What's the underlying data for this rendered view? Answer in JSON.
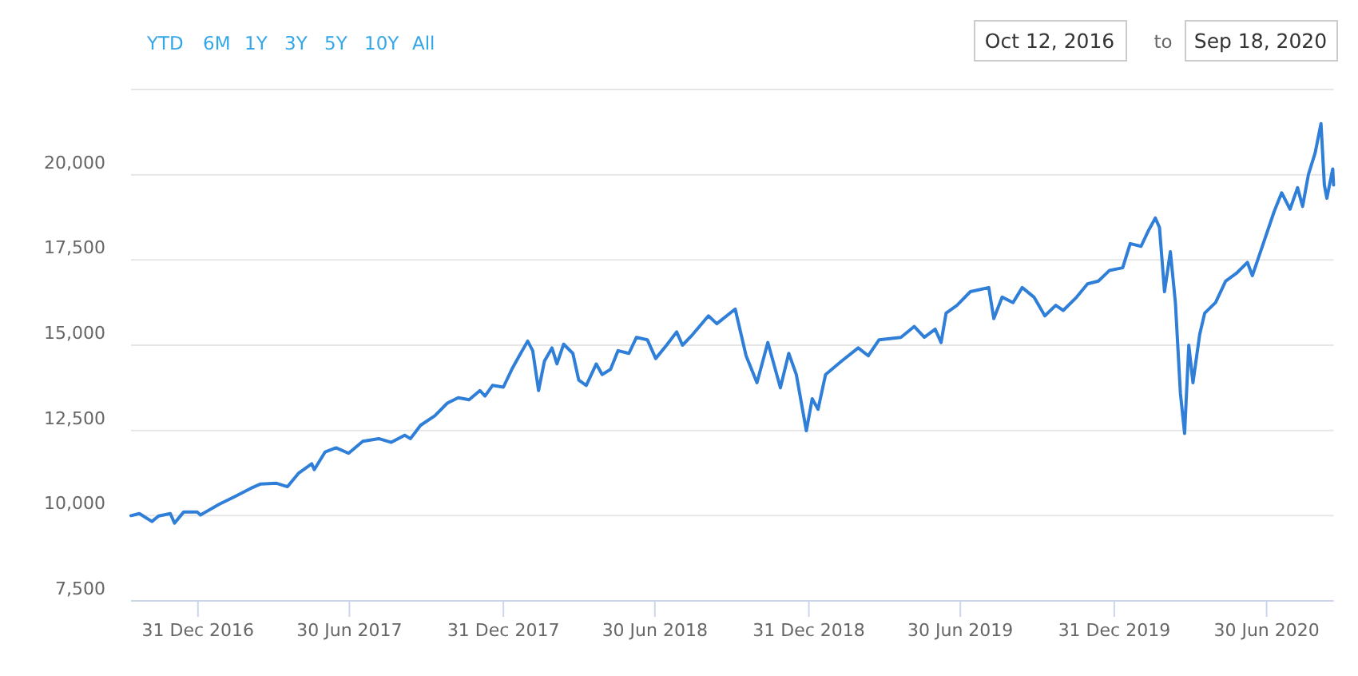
{
  "chart_data": {
    "type": "line",
    "annotations": [
      "YTD",
      "6M",
      "1Y",
      "3Y",
      "5Y",
      "10Y",
      "All",
      "Oct 12, 2016",
      "to",
      "Sep 18, 2020"
    ],
    "xlim": [
      "2016-10-12",
      "2020-09-18"
    ],
    "xticks": [
      {
        "value": "2016-12-31",
        "label": "31 Dec 2016"
      },
      {
        "value": "2017-06-30",
        "label": "30 Jun 2017"
      },
      {
        "value": "2017-12-31",
        "label": "31 Dec 2017"
      },
      {
        "value": "2018-06-30",
        "label": "30 Jun 2018"
      },
      {
        "value": "2018-12-31",
        "label": "31 Dec 2018"
      },
      {
        "value": "2019-06-30",
        "label": "30 Jun 2019"
      },
      {
        "value": "2019-12-31",
        "label": "31 Dec 2019"
      },
      {
        "value": "2020-06-30",
        "label": "30 Jun 2020"
      }
    ],
    "ylim": [
      7500,
      22500
    ],
    "yticks": [
      {
        "value": 7500,
        "label": "7,500"
      },
      {
        "value": 10000,
        "label": "10,000"
      },
      {
        "value": 12500,
        "label": "12,500"
      },
      {
        "value": 15000,
        "label": "15,000"
      },
      {
        "value": 17500,
        "label": "17,500"
      },
      {
        "value": 20000,
        "label": "20,000"
      },
      {
        "value": 22500,
        "label": null
      }
    ],
    "grid": "y",
    "series": [
      {
        "color": "#2f7ed8",
        "x": [
          "2016-10-12",
          "2016-10-22",
          "2016-11-06",
          "2016-11-14",
          "2016-11-28",
          "2016-12-03",
          "2016-12-14",
          "2016-12-30",
          "2017-01-03",
          "2017-01-25",
          "2017-02-13",
          "2017-03-04",
          "2017-03-16",
          "2017-04-04",
          "2017-04-17",
          "2017-04-30",
          "2017-05-16",
          "2017-05-19",
          "2017-06-01",
          "2017-06-14",
          "2017-06-29",
          "2017-07-16",
          "2017-08-04",
          "2017-08-19",
          "2017-09-04",
          "2017-09-11",
          "2017-09-23",
          "2017-10-10",
          "2017-10-25",
          "2017-11-07",
          "2017-11-20",
          "2017-12-03",
          "2017-12-09",
          "2017-12-18",
          "2017-12-31",
          "2018-01-10",
          "2018-01-19",
          "2018-01-29",
          "2018-02-04",
          "2018-02-11",
          "2018-02-18",
          "2018-02-27",
          "2018-03-05",
          "2018-03-13",
          "2018-03-24",
          "2018-03-31",
          "2018-04-09",
          "2018-04-21",
          "2018-04-28",
          "2018-05-08",
          "2018-05-17",
          "2018-05-30",
          "2018-06-08",
          "2018-06-21",
          "2018-07-01",
          "2018-07-14",
          "2018-07-26",
          "2018-08-02",
          "2018-08-14",
          "2018-09-02",
          "2018-09-12",
          "2018-10-04",
          "2018-10-17",
          "2018-10-30",
          "2018-11-12",
          "2018-11-27",
          "2018-12-07",
          "2018-12-16",
          "2018-12-28",
          "2019-01-04",
          "2019-01-11",
          "2019-01-20",
          "2019-02-08",
          "2019-02-28",
          "2019-03-12",
          "2019-03-25",
          "2019-04-20",
          "2019-05-06",
          "2019-05-18",
          "2019-05-31",
          "2019-06-07",
          "2019-06-13",
          "2019-06-26",
          "2019-07-12",
          "2019-07-25",
          "2019-08-03",
          "2019-08-09",
          "2019-08-19",
          "2019-09-01",
          "2019-09-12",
          "2019-09-26",
          "2019-10-09",
          "2019-10-22",
          "2019-10-31",
          "2019-11-16",
          "2019-11-29",
          "2019-12-12",
          "2019-12-25",
          "2020-01-10",
          "2020-01-19",
          "2020-02-01",
          "2020-02-10",
          "2020-02-18",
          "2020-02-23",
          "2020-02-29",
          "2020-03-07",
          "2020-03-13",
          "2020-03-19",
          "2020-03-24",
          "2020-03-29",
          "2020-04-03",
          "2020-04-11",
          "2020-04-17",
          "2020-04-30",
          "2020-05-12",
          "2020-05-25",
          "2020-06-07",
          "2020-06-13",
          "2020-06-26",
          "2020-07-09",
          "2020-07-18",
          "2020-07-28",
          "2020-08-06",
          "2020-08-12",
          "2020-08-19",
          "2020-08-27",
          "2020-09-03",
          "2020-09-07",
          "2020-09-10",
          "2020-09-17",
          "2020-09-18"
        ],
        "values": [
          10000,
          10060,
          9830,
          9990,
          10060,
          9780,
          10110,
          10110,
          10020,
          10330,
          10560,
          10800,
          10930,
          10950,
          10850,
          11240,
          11520,
          11350,
          11870,
          11990,
          11830,
          12180,
          12260,
          12150,
          12360,
          12260,
          12650,
          12930,
          13300,
          13460,
          13400,
          13670,
          13510,
          13820,
          13770,
          14290,
          14690,
          15120,
          14840,
          13670,
          14530,
          14920,
          14450,
          15030,
          14760,
          13980,
          13820,
          14450,
          14140,
          14290,
          14840,
          14760,
          15230,
          15160,
          14610,
          15000,
          15390,
          15000,
          15310,
          15860,
          15630,
          16060,
          14690,
          13900,
          15080,
          13750,
          14760,
          14140,
          12490,
          13430,
          13120,
          14140,
          14530,
          14920,
          14690,
          15160,
          15230,
          15550,
          15230,
          15470,
          15080,
          15940,
          16170,
          16570,
          16640,
          16690,
          15780,
          16410,
          16250,
          16690,
          16410,
          15860,
          16170,
          16020,
          16410,
          16800,
          16880,
          17190,
          17270,
          17980,
          17900,
          18370,
          18730,
          18450,
          16570,
          17740,
          16250,
          13590,
          12410,
          15000,
          13900,
          15310,
          15940,
          16250,
          16880,
          17110,
          17430,
          17040,
          17980,
          18920,
          19470,
          18990,
          19620,
          19070,
          20010,
          20640,
          21500,
          19700,
          19310,
          20170,
          19700
        ]
      }
    ]
  }
}
